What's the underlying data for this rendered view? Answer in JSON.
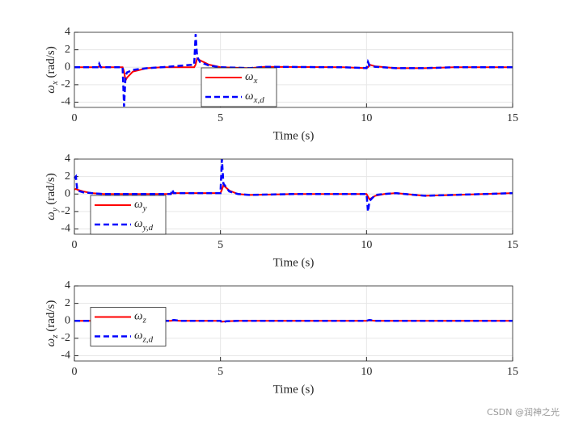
{
  "chart_data": [
    {
      "type": "line",
      "xlabel": "Time (s)",
      "ylabel": "ωx (rad/s)",
      "x": [
        0,
        0.8,
        0.85,
        0.9,
        1.65,
        1.7,
        1.75,
        1.8,
        2.0,
        2.5,
        3.0,
        4.1,
        4.15,
        4.2,
        4.3,
        4.6,
        5.0,
        6.0,
        6.5,
        9.2,
        10.0,
        10.05,
        10.1,
        10.3,
        11.0,
        12.0,
        13.0,
        15.0
      ],
      "series": [
        {
          "name": "ωx",
          "color": "#ff0000",
          "style": "solid",
          "values": [
            0,
            0,
            0.1,
            0,
            0,
            -0.5,
            -1.5,
            -1.2,
            -0.5,
            -0.1,
            0,
            0,
            0.3,
            1.0,
            0.8,
            0.3,
            0,
            -0.1,
            0.05,
            0,
            -0.1,
            0,
            0.3,
            0.1,
            -0.1,
            -0.1,
            0,
            0
          ]
        },
        {
          "name": "ωx,d",
          "color": "#0000ff",
          "style": "dashed",
          "values": [
            0,
            0,
            0.4,
            0,
            0,
            -4.5,
            -1.0,
            -0.6,
            -0.3,
            -0.1,
            0,
            0.3,
            3.8,
            1.2,
            0.6,
            0.2,
            0,
            -0.1,
            0.05,
            0,
            -0.1,
            0.6,
            0.2,
            0.05,
            -0.1,
            -0.1,
            0,
            0
          ]
        }
      ],
      "xlim": [
        0,
        15
      ],
      "xticks": [
        0,
        5,
        10,
        15
      ],
      "ylim": [
        -4.6,
        4
      ],
      "yticks": [
        -4,
        -2,
        0,
        2,
        4
      ],
      "grid": true,
      "legend": "lower center"
    },
    {
      "type": "line",
      "xlabel": "Time (s)",
      "ylabel": "ωy (rad/s)",
      "x": [
        0,
        0.05,
        0.1,
        0.3,
        0.6,
        1,
        3.3,
        3.35,
        3.4,
        5.0,
        5.05,
        5.1,
        5.3,
        5.6,
        6,
        7.5,
        10.0,
        10.05,
        10.1,
        10.3,
        10.6,
        11,
        12,
        13,
        15
      ],
      "series": [
        {
          "name": "ωy",
          "color": "#ff0000",
          "style": "solid",
          "values": [
            0.5,
            0.6,
            0.5,
            0.3,
            0.1,
            0,
            0,
            0.1,
            0.1,
            0.1,
            0.5,
            1.0,
            0.4,
            0,
            -0.1,
            0,
            0,
            -0.3,
            -0.6,
            -0.2,
            0,
            0.1,
            -0.2,
            -0.1,
            0.1
          ]
        },
        {
          "name": "ωy,d",
          "color": "#0000ff",
          "style": "dashed",
          "values": [
            1.8,
            2.0,
            0.4,
            0.2,
            0.1,
            0,
            0,
            0.5,
            0.1,
            0.1,
            4.0,
            1.2,
            0.3,
            0,
            -0.1,
            0,
            0,
            -2.0,
            -0.8,
            -0.1,
            0,
            0.1,
            -0.2,
            -0.1,
            0.1
          ]
        }
      ],
      "xlim": [
        0,
        15
      ],
      "xticks": [
        0,
        5,
        10,
        15
      ],
      "ylim": [
        -4.6,
        4
      ],
      "yticks": [
        -4,
        -2,
        0,
        2,
        4
      ],
      "grid": true,
      "legend": "lower left"
    },
    {
      "type": "line",
      "xlabel": "Time (s)",
      "ylabel": "ωz (rad/s)",
      "x": [
        0,
        3.3,
        3.4,
        3.6,
        5.0,
        5.05,
        5.2,
        5.6,
        10.0,
        10.1,
        10.3,
        15
      ],
      "series": [
        {
          "name": "ωz",
          "color": "#ff0000",
          "style": "solid",
          "values": [
            0,
            0,
            0.05,
            0,
            0,
            -0.1,
            -0.05,
            0,
            0,
            0.05,
            0,
            0
          ]
        },
        {
          "name": "ωz,d",
          "color": "#0000ff",
          "style": "dashed",
          "values": [
            0,
            0,
            0.1,
            0,
            0,
            -0.2,
            -0.05,
            0,
            0,
            0.1,
            0,
            0
          ]
        }
      ],
      "xlim": [
        0,
        15
      ],
      "xticks": [
        0,
        5,
        10,
        15
      ],
      "ylim": [
        -4.6,
        4
      ],
      "yticks": [
        -4,
        -2,
        0,
        2,
        4
      ],
      "grid": true,
      "legend": "center left"
    }
  ],
  "watermark": "CSDN @润神之光"
}
